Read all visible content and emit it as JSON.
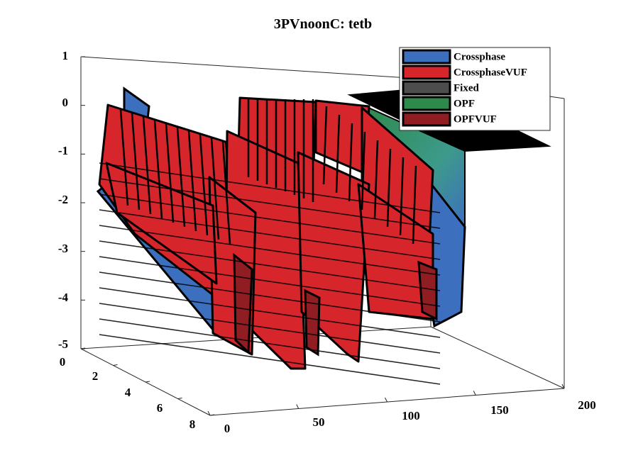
{
  "chart_data": {
    "type": "surface",
    "title": "3PVnoonC: tetb",
    "xlabel": "",
    "ylabel": "",
    "zlabel": "",
    "x_axis": {
      "range": [
        0,
        200
      ],
      "ticks": [
        0,
        50,
        100,
        150,
        200
      ]
    },
    "y_axis": {
      "range": [
        0,
        8
      ],
      "ticks": [
        0,
        2,
        4,
        6,
        8
      ]
    },
    "z_axis": {
      "range": [
        -5,
        1
      ],
      "ticks": [
        -5,
        -4,
        -3,
        -2,
        -1,
        0,
        1
      ]
    },
    "grid": false,
    "legend_position": "top-right",
    "series": [
      {
        "name": "Crossphase",
        "color": "#3d6fbf"
      },
      {
        "name": "CrossphaseVUF",
        "color": "#d6262c"
      },
      {
        "name": "Fixed",
        "color": "#4d4d4d"
      },
      {
        "name": "OPF",
        "color": "#2e8a4b"
      },
      {
        "name": "OPFVUF",
        "color": "#8f1d22"
      }
    ]
  }
}
